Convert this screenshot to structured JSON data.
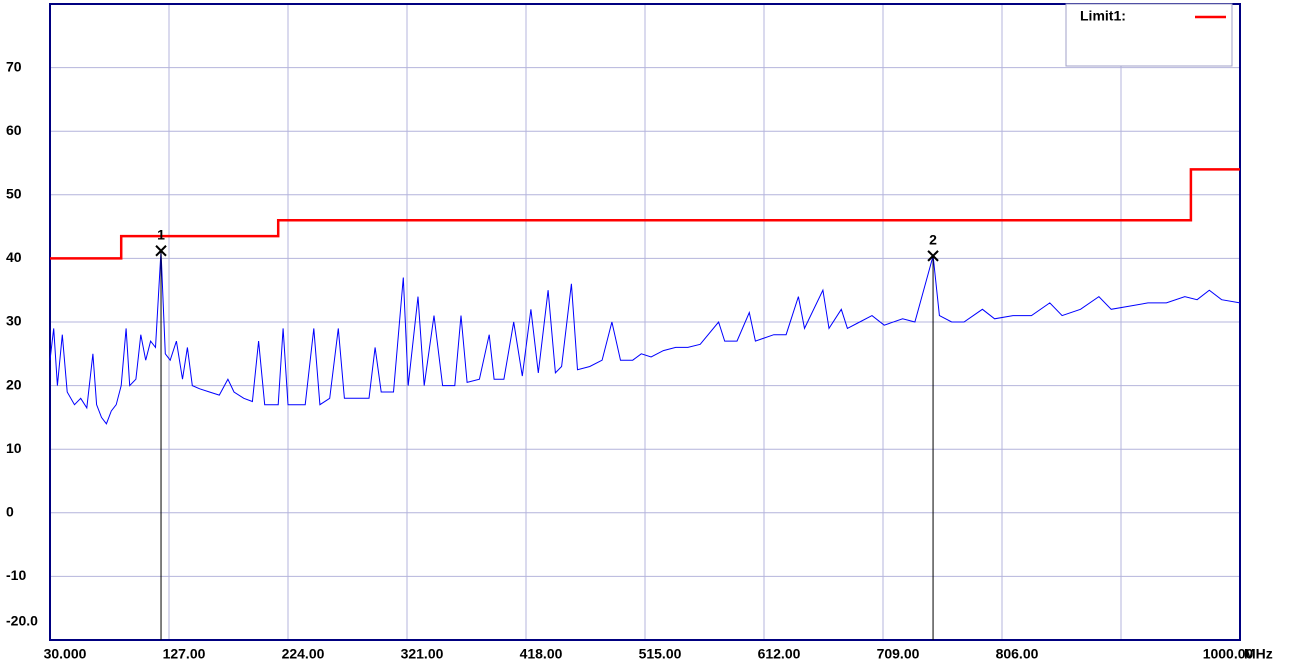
{
  "chart_data": {
    "type": "line",
    "x_unit": "MHz",
    "xlim": [
      30,
      1000
    ],
    "ylim": [
      -20,
      80
    ],
    "xticks": [
      {
        "value": 30,
        "label": "30.000"
      },
      {
        "value": 127,
        "label": "127.00"
      },
      {
        "value": 224,
        "label": "224.00"
      },
      {
        "value": 321,
        "label": "321.00"
      },
      {
        "value": 418,
        "label": "418.00"
      },
      {
        "value": 515,
        "label": "515.00"
      },
      {
        "value": 612,
        "label": "612.00"
      },
      {
        "value": 709,
        "label": "709.00"
      },
      {
        "value": 806,
        "label": "806.00"
      },
      {
        "value": 903,
        "label": null
      },
      {
        "value": 1000,
        "label": "1000.00"
      }
    ],
    "yticks": [
      {
        "value": -20,
        "label": "-20.0"
      },
      -10,
      0,
      10,
      20,
      30,
      40,
      50,
      60,
      70
    ],
    "grid": true,
    "series": [
      {
        "name": "Limit1:",
        "color": "#ff0000",
        "legend": true,
        "x": [
          30,
          88,
          88,
          216,
          216,
          960,
          960,
          1000
        ],
        "values": [
          40,
          40,
          43.5,
          43.5,
          46,
          46,
          54,
          54
        ]
      },
      {
        "name": null,
        "color": "#0000ff",
        "legend": false,
        "x": [
          30,
          33,
          36,
          40,
          44,
          50,
          55,
          60,
          65,
          68,
          72,
          76,
          80,
          84,
          88,
          92,
          95,
          100,
          104,
          108,
          112,
          116,
          120.5,
          124,
          128,
          133,
          138,
          142,
          146,
          152,
          160,
          168,
          175,
          180,
          188,
          195,
          200,
          205,
          212,
          216,
          220,
          224,
          230,
          238,
          245,
          250,
          258,
          265,
          270,
          280,
          290,
          295,
          300,
          310,
          318,
          322,
          330,
          335,
          343,
          350,
          360,
          365,
          370,
          380,
          388,
          392,
          400,
          408,
          415,
          422,
          428,
          436,
          442,
          447,
          455,
          460,
          470,
          480,
          488,
          495,
          505,
          512,
          520,
          530,
          540,
          550,
          560,
          575,
          580,
          590,
          600,
          605,
          620,
          630,
          640,
          645,
          660,
          665,
          675,
          680,
          690,
          700,
          710,
          725,
          735,
          749.8,
          755,
          765,
          775,
          790,
          800,
          815,
          830,
          845,
          855,
          870,
          885,
          895,
          910,
          925,
          940,
          955,
          965,
          975,
          985,
          1000
        ],
        "values": [
          24,
          29,
          20,
          28,
          19,
          17,
          18,
          16.5,
          25,
          17,
          15,
          14,
          16,
          17,
          20,
          29,
          20,
          21,
          28,
          24,
          27,
          26,
          41.2,
          25,
          24,
          27,
          21,
          26,
          20,
          19.5,
          19,
          18.5,
          21,
          19,
          18,
          17.5,
          27,
          17,
          17,
          17,
          29,
          17,
          17,
          17,
          29,
          17,
          18,
          29,
          18,
          18,
          18,
          26,
          19,
          19,
          37,
          20,
          34,
          20,
          31,
          20,
          20,
          31,
          20.5,
          21,
          28,
          21,
          21,
          30,
          21.5,
          32,
          22,
          35,
          22,
          23,
          36,
          22.5,
          23,
          24,
          30,
          24,
          24,
          25,
          24.5,
          25.5,
          26,
          26,
          26.5,
          30,
          27,
          27,
          31.5,
          27,
          28,
          28,
          34,
          29,
          35,
          29,
          32,
          29,
          30,
          31,
          29.5,
          30.5,
          30,
          40.4,
          31,
          30,
          30,
          32,
          30.5,
          31,
          31,
          33,
          31,
          32,
          34,
          32,
          32.5,
          33,
          33,
          34,
          33.5,
          35,
          33.5,
          33
        ]
      }
    ],
    "markers": [
      {
        "label": "1",
        "x": 120.5,
        "y": 41.2
      },
      {
        "label": "2",
        "x": 749.8,
        "y": 40.4
      }
    ]
  }
}
